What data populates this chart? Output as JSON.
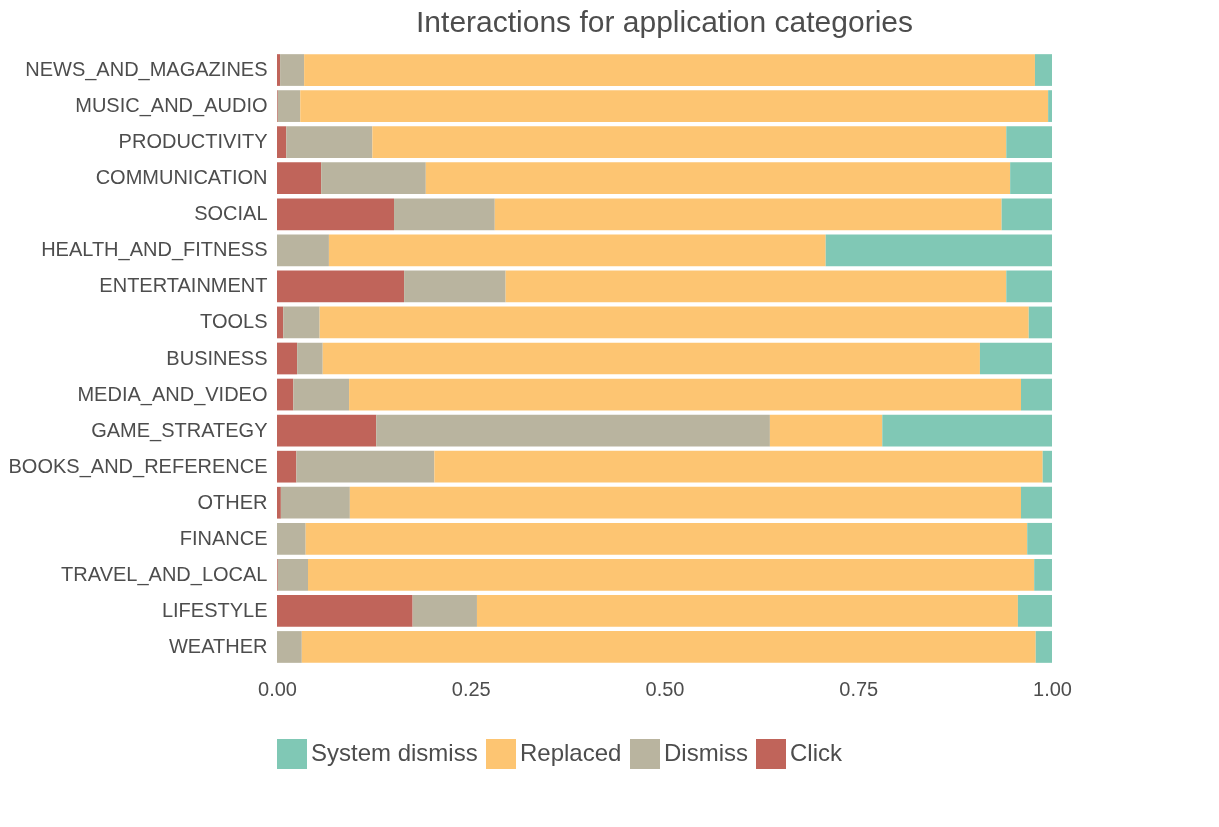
{
  "chart_data": {
    "type": "bar",
    "title": "Interactions for application categories",
    "orientation": "horizontal",
    "stacked": true,
    "legend": "bottom",
    "grid": false,
    "categories": [
      "NEWS_AND_MAGAZINES",
      "MUSIC_AND_AUDIO",
      "PRODUCTIVITY",
      "COMMUNICATION",
      "SOCIAL",
      "HEALTH_AND_FITNESS",
      "ENTERTAINMENT",
      "TOOLS",
      "BUSINESS",
      "MEDIA_AND_VIDEO",
      "GAME_STRATEGY",
      "BOOKS_AND_REFERENCE",
      "OTHER",
      "FINANCE",
      "TRAVEL_AND_LOCAL",
      "LIFESTYLE",
      "WEATHER"
    ],
    "xlim": [
      0,
      1
    ],
    "xticks": [
      {
        "value": 0,
        "label": "0.00"
      },
      {
        "value": 0.25,
        "label": "0.25"
      },
      {
        "value": 0.5,
        "label": "0.50"
      },
      {
        "value": 0.75,
        "label": "0.75"
      },
      {
        "value": 1,
        "label": "1.00"
      }
    ],
    "series": [
      {
        "name": "Click",
        "color": "#c0645a",
        "values": [
          0.004,
          0.001,
          0.012,
          0.057,
          0.151,
          0,
          0.164,
          0.008,
          0.026,
          0.021,
          0.128,
          0.025,
          0.005,
          0,
          0.001,
          0.175,
          0
        ]
      },
      {
        "name": "Dismiss",
        "color": "#b9b49f",
        "values": [
          0.031,
          0.029,
          0.111,
          0.135,
          0.13,
          0.067,
          0.131,
          0.047,
          0.033,
          0.072,
          0.508,
          0.178,
          0.089,
          0.037,
          0.039,
          0.083,
          0.032
        ]
      },
      {
        "name": "Replaced",
        "color": "#fdc572",
        "values": [
          0.943,
          0.965,
          0.818,
          0.754,
          0.654,
          0.641,
          0.646,
          0.915,
          0.848,
          0.867,
          0.145,
          0.785,
          0.866,
          0.931,
          0.937,
          0.698,
          0.947
        ]
      },
      {
        "name": "System dismiss",
        "color": "#80c8b5",
        "values": [
          0.022,
          0.005,
          0.059,
          0.054,
          0.065,
          0.292,
          0.059,
          0.03,
          0.093,
          0.04,
          0.219,
          0.012,
          0.04,
          0.032,
          0.023,
          0.044,
          0.021
        ]
      }
    ]
  }
}
